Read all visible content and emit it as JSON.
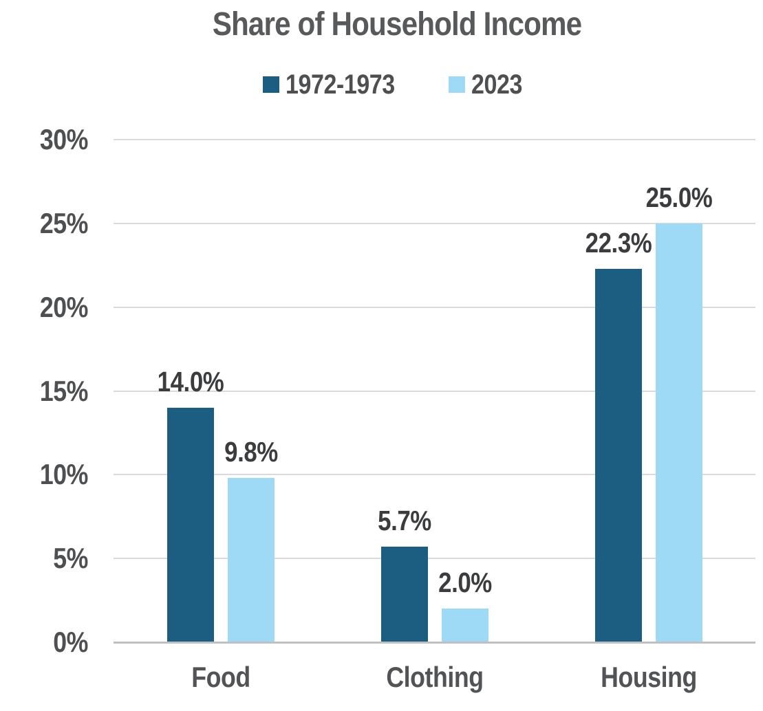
{
  "chart_data": {
    "type": "bar",
    "title": "Share of Household Income",
    "categories": [
      "Food",
      "Clothing",
      "Housing"
    ],
    "series": [
      {
        "name": "1972-1973",
        "color": "#1C5E82",
        "values": [
          14.0,
          5.7,
          22.3
        ],
        "labels": [
          "14.0%",
          "5.7%",
          "22.3%"
        ]
      },
      {
        "name": "2023",
        "color": "#9EDAF6",
        "values": [
          9.8,
          2.0,
          25.0
        ],
        "labels": [
          "9.8%",
          "2.0%",
          "25.0%"
        ]
      }
    ],
    "y_ticks": [
      {
        "value": 30,
        "label": "30%"
      },
      {
        "value": 25,
        "label": "25%"
      },
      {
        "value": 20,
        "label": "20%"
      },
      {
        "value": 15,
        "label": "15%"
      },
      {
        "value": 10,
        "label": "10%"
      },
      {
        "value": 5,
        "label": "5%"
      },
      {
        "value": 0,
        "label": "0%"
      }
    ],
    "ylim": [
      0,
      30
    ],
    "grid": true,
    "legend_position": "top"
  },
  "colors": {
    "gridline": "#DADADA",
    "baseline": "#C0C0C0",
    "title_text": "#58595B",
    "axis_text": "#4E4F51",
    "category_text": "#525356",
    "value_text": "#3B3C3E"
  }
}
